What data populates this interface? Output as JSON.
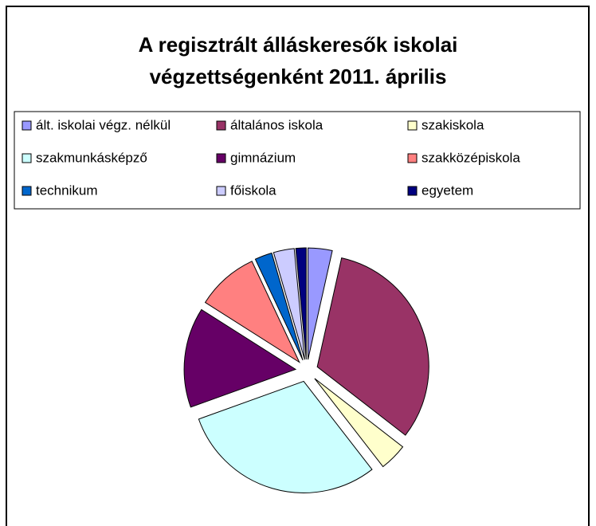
{
  "chart_data": {
    "type": "pie",
    "title": "A regisztrált álláskeresők iskolai végzettségenként 2011. április",
    "categories": [
      "ált. iskolai végz. nélkül",
      "általános iskola",
      "szakiskola",
      "szakmunkásképző",
      "gimnázium",
      "szakközépiskola",
      "technikum",
      "főiskola",
      "egyetem"
    ],
    "values": [
      3.5,
      32,
      4,
      30,
      14.5,
      9,
      2.5,
      3,
      1.5
    ],
    "colors": [
      "#9999ff",
      "#993366",
      "#ffffcc",
      "#ccffff",
      "#660066",
      "#ff8080",
      "#0066cc",
      "#ccccff",
      "#000080"
    ],
    "legend": "top",
    "exploded": true
  }
}
